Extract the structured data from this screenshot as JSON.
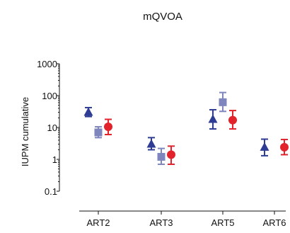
{
  "chart_data": {
    "type": "scatter",
    "title": "mQVOA",
    "ylabel": "IUPM cumulative",
    "xlabel": "",
    "yscale": "log",
    "ylim": [
      0.1,
      1000
    ],
    "yticks": [
      "0.1",
      "1",
      "10",
      "100",
      "1000"
    ],
    "categories": [
      "ART2",
      "ART3",
      "ART5",
      "ART6"
    ],
    "legend": "none",
    "series": [
      {
        "marker": "triangle",
        "color": "#2e3d93",
        "points": [
          {
            "y": 30,
            "lo": 22,
            "hi": 42
          },
          {
            "y": 3.0,
            "lo": 2.0,
            "hi": 4.8
          },
          {
            "y": 18,
            "lo": 9,
            "hi": 36
          },
          {
            "y": 2.4,
            "lo": 1.3,
            "hi": 4.3
          }
        ]
      },
      {
        "marker": "square",
        "color": "#7f86bd",
        "points": [
          {
            "y": 7.0,
            "lo": 4.8,
            "hi": 10.5
          },
          {
            "y": 1.2,
            "lo": 0.7,
            "hi": 2.2
          },
          {
            "y": 62,
            "lo": 32,
            "hi": 125
          },
          null
        ]
      },
      {
        "marker": "circle",
        "color": "#e3232b",
        "points": [
          {
            "y": 10.5,
            "lo": 6.0,
            "hi": 18
          },
          {
            "y": 1.4,
            "lo": 0.7,
            "hi": 2.6
          },
          {
            "y": 17,
            "lo": 9,
            "hi": 34
          },
          {
            "y": 2.4,
            "lo": 1.4,
            "hi": 4.2
          }
        ]
      }
    ]
  }
}
